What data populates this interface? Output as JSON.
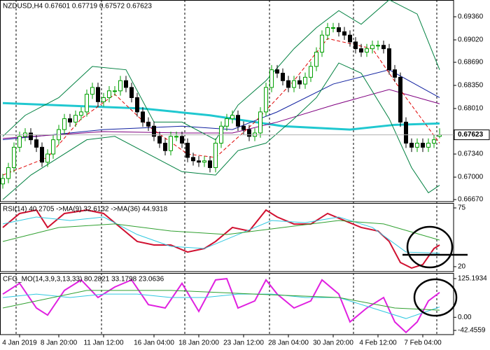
{
  "chart_data": [
    {
      "type": "candlestick",
      "title": "NZDUSD,H4  0.67601 0.67719 0.67572 0.67623",
      "up_color": "#00a000",
      "down_color": "#000000",
      "categories": [
        null,
        null,
        null,
        "4 Jan 2019",
        null,
        null,
        null,
        null,
        null,
        null,
        "8 Jan 20:00",
        null,
        null,
        null,
        null,
        null,
        null,
        null,
        "11 Jan 12:00",
        null,
        null,
        null,
        null,
        null,
        null,
        null,
        null,
        "16 Jan 04:00",
        null,
        null,
        null,
        null,
        null,
        null,
        null,
        "18 Jan 20:00",
        null,
        null,
        null,
        null,
        null,
        null,
        null,
        "23 Jan 12:00",
        null,
        null,
        null,
        null,
        null,
        null,
        null,
        "28 Jan 04:00",
        null,
        null,
        null,
        null,
        null,
        null,
        null,
        "30 Jan 20:00",
        null,
        null,
        null,
        null,
        null,
        null,
        null,
        "4 Feb 12:00",
        null,
        null,
        null,
        null,
        null,
        null,
        null,
        "7 Feb 04:00",
        null,
        null,
        null
      ],
      "open": [
        0.669,
        0.6698,
        0.6714,
        0.6744,
        0.676,
        0.6765,
        0.6755,
        0.6744,
        0.6722,
        0.6734,
        0.6755,
        0.677,
        0.6786,
        0.6781,
        0.6791,
        0.6796,
        0.6822,
        0.6832,
        0.6811,
        0.6817,
        0.6827,
        0.6827,
        0.6842,
        0.6832,
        0.6817,
        0.6796,
        0.6781,
        0.6775,
        0.676,
        0.675,
        0.6739,
        0.676,
        0.676,
        0.675,
        0.6729,
        0.6724,
        0.6722,
        0.6724,
        0.6714,
        0.675,
        0.6775,
        0.6786,
        0.6791,
        0.6775,
        0.677,
        0.676,
        0.6765,
        0.6796,
        0.6832,
        0.6858,
        0.6853,
        0.6842,
        0.6832,
        0.6842,
        0.6837,
        0.6847,
        0.6863,
        0.6884,
        0.6909,
        0.692,
        0.692,
        0.6914,
        0.6909,
        0.6899,
        0.6889,
        0.6884,
        0.6889,
        0.6894,
        0.6894,
        0.6889,
        0.6858,
        0.6847,
        0.6781,
        0.675,
        0.6744,
        0.675,
        0.6744,
        0.675,
        0.67601
      ],
      "high": [
        0.6705,
        0.6721,
        0.6751,
        0.6767,
        0.6772,
        0.6772,
        0.6762,
        0.6751,
        0.6741,
        0.6762,
        0.6777,
        0.6793,
        0.6793,
        0.6798,
        0.6803,
        0.6829,
        0.6839,
        0.6839,
        0.6824,
        0.6834,
        0.6834,
        0.6849,
        0.6849,
        0.6839,
        0.6824,
        0.6803,
        0.6788,
        0.6782,
        0.6767,
        0.6757,
        0.6767,
        0.6767,
        0.6767,
        0.6757,
        0.6736,
        0.6731,
        0.6731,
        0.6731,
        0.6757,
        0.6782,
        0.6793,
        0.6798,
        0.6798,
        0.6782,
        0.6777,
        0.6772,
        0.6803,
        0.6839,
        0.6865,
        0.6865,
        0.686,
        0.6849,
        0.6849,
        0.6849,
        0.6854,
        0.687,
        0.6891,
        0.6916,
        0.6927,
        0.6927,
        0.6927,
        0.6921,
        0.6916,
        0.6906,
        0.6896,
        0.6896,
        0.6901,
        0.6901,
        0.6901,
        0.6896,
        0.6865,
        0.6854,
        0.6788,
        0.6757,
        0.6757,
        0.6757,
        0.6757,
        0.6762,
        0.67719
      ],
      "low": [
        0.6683,
        0.6691,
        0.6707,
        0.6737,
        0.6753,
        0.6748,
        0.6737,
        0.6715,
        0.6715,
        0.6727,
        0.6748,
        0.6763,
        0.6774,
        0.6774,
        0.6784,
        0.6789,
        0.6815,
        0.6804,
        0.6804,
        0.681,
        0.682,
        0.682,
        0.6825,
        0.681,
        0.6789,
        0.6774,
        0.6768,
        0.6753,
        0.6743,
        0.6732,
        0.6732,
        0.6753,
        0.6743,
        0.6722,
        0.6717,
        0.6715,
        0.6715,
        0.6707,
        0.6707,
        0.6743,
        0.6768,
        0.6779,
        0.6768,
        0.6763,
        0.6753,
        0.6753,
        0.6758,
        0.6789,
        0.6825,
        0.6846,
        0.6835,
        0.6825,
        0.6825,
        0.683,
        0.683,
        0.684,
        0.6856,
        0.6877,
        0.6902,
        0.6913,
        0.6907,
        0.6902,
        0.6892,
        0.6882,
        0.6877,
        0.6877,
        0.6882,
        0.6887,
        0.6882,
        0.6851,
        0.684,
        0.6774,
        0.6743,
        0.6737,
        0.6737,
        0.6737,
        0.6737,
        0.6743,
        0.67572
      ],
      "close": [
        0.6698,
        0.6714,
        0.6744,
        0.676,
        0.6765,
        0.6755,
        0.6744,
        0.6722,
        0.6734,
        0.6755,
        0.677,
        0.6786,
        0.6781,
        0.6791,
        0.6796,
        0.6822,
        0.6832,
        0.6811,
        0.6817,
        0.6827,
        0.6827,
        0.6842,
        0.6832,
        0.6817,
        0.6796,
        0.6781,
        0.6775,
        0.676,
        0.675,
        0.6739,
        0.676,
        0.676,
        0.675,
        0.6729,
        0.6724,
        0.6722,
        0.6724,
        0.6714,
        0.675,
        0.6775,
        0.6786,
        0.6791,
        0.6775,
        0.677,
        0.676,
        0.6765,
        0.6796,
        0.6832,
        0.6858,
        0.6853,
        0.6842,
        0.6832,
        0.6842,
        0.6837,
        0.6847,
        0.6863,
        0.6884,
        0.6909,
        0.692,
        0.692,
        0.6914,
        0.6909,
        0.6899,
        0.6889,
        0.6884,
        0.6889,
        0.6894,
        0.6894,
        0.6889,
        0.6858,
        0.6847,
        0.6781,
        0.675,
        0.6744,
        0.675,
        0.6744,
        0.675,
        0.6755,
        0.67623
      ],
      "series": [
        {
          "color": "#20c8d0",
          "x": [
            0,
            25,
            37,
            50,
            62,
            70,
            78
          ],
          "values": [
            0.6809,
            0.6801,
            0.6791,
            0.6775,
            0.677,
            0.6777,
            0.6779
          ]
        },
        {
          "color": "#1020a0",
          "x": [
            0,
            18,
            32,
            41,
            49,
            59,
            69,
            78
          ],
          "values": [
            0.6755,
            0.677,
            0.6775,
            0.677,
            0.6796,
            0.6837,
            0.6858,
            0.6817
          ]
        },
        {
          "color": "#800080",
          "x": [
            0,
            18,
            32,
            41,
            49,
            59,
            69,
            78
          ],
          "values": [
            0.6757,
            0.6767,
            0.6765,
            0.6765,
            0.6781,
            0.6806,
            0.6829,
            0.6808
          ]
        },
        {
          "color": "#008040",
          "x": [
            0,
            4,
            10,
            16,
            22,
            27,
            32,
            38,
            42,
            47,
            52,
            56,
            60,
            64,
            69,
            74,
            78
          ],
          "values": [
            0.676,
            0.6791,
            0.6817,
            0.6863,
            0.6858,
            0.6781,
            0.6781,
            0.6755,
            0.6806,
            0.6842,
            0.6889,
            0.692,
            0.6945,
            0.6925,
            0.6961,
            0.694,
            0.6858
          ]
        },
        {
          "color": "#008040",
          "x": [
            0,
            5,
            10,
            15,
            20,
            26,
            32,
            38,
            42,
            47,
            52,
            56,
            60,
            64,
            69,
            73,
            76,
            78
          ],
          "values": [
            0.6667,
            0.6703,
            0.6729,
            0.6755,
            0.676,
            0.6734,
            0.6708,
            0.6703,
            0.6739,
            0.675,
            0.6786,
            0.6817,
            0.6868,
            0.6853,
            0.6786,
            0.6714,
            0.6677,
            0.6688
          ]
        },
        {
          "color": "#e00000",
          "dash": true,
          "x": [
            0,
            8,
            14,
            20,
            26,
            33,
            38,
            45,
            52,
            58,
            66,
            72,
            78
          ],
          "values": [
            0.6703,
            0.6729,
            0.6786,
            0.6822,
            0.6775,
            0.6734,
            0.6729,
            0.6781,
            0.6842,
            0.6904,
            0.6889,
            0.6817,
            0.675
          ]
        }
      ],
      "ylim": [
        0.6664,
        0.69607
      ],
      "yticks": [
        {
          "value": 0.6936,
          "label": "0.69360"
        },
        {
          "value": 0.6902,
          "label": "0.69020"
        },
        {
          "value": 0.6869,
          "label": "0.68690"
        },
        {
          "value": 0.6835,
          "label": "0.68350"
        },
        {
          "value": 0.6801,
          "label": "0.68010"
        },
        {
          "value": 0.6734,
          "label": "0.67340"
        },
        {
          "value": 0.67,
          "label": "0.67000"
        },
        {
          "value": 0.6667,
          "label": "0.66670"
        }
      ]
    },
    {
      "type": "line",
      "title": "RSI(14) 40.2705  ->MA(9) 32.6132  ->MA(36) 44.9318",
      "series": [
        {
          "color": "#d01030",
          "x": [
            0,
            3,
            6,
            8,
            11,
            15,
            18,
            21,
            24,
            27,
            30,
            33,
            36,
            38,
            41,
            44,
            47,
            49,
            52,
            55,
            58,
            61,
            64,
            67,
            69,
            71,
            73,
            75,
            77,
            78
          ],
          "values": [
            56.7,
            69.8,
            73,
            56.7,
            69.8,
            73,
            69.8,
            56.7,
            43.6,
            40.3,
            40.3,
            33.7,
            37,
            43.6,
            56.7,
            53.4,
            73,
            66.5,
            59.9,
            59.9,
            69.8,
            63.2,
            56.7,
            53.4,
            43.6,
            23.9,
            18.7,
            22,
            37,
            40.3
          ]
        },
        {
          "color": "#30c8e0",
          "x": [
            0,
            6,
            12,
            18,
            24,
            30,
            36,
            42,
            48,
            54,
            60,
            66,
            72,
            78
          ],
          "values": [
            60,
            66.5,
            63.2,
            66.5,
            50.1,
            39,
            37,
            50.1,
            63.2,
            61.2,
            66.5,
            56.7,
            33.7,
            32.6
          ]
        },
        {
          "color": "#30a030",
          "x": [
            0,
            10,
            20,
            30,
            40,
            50,
            60,
            68,
            78
          ],
          "values": [
            43.6,
            56.7,
            60,
            53.4,
            50.1,
            56.7,
            63.2,
            60,
            44.9
          ]
        }
      ],
      "ylim": [
        15.4,
        79.6
      ],
      "yticks": [
        75,
        20
      ]
    },
    {
      "type": "line",
      "title": "CFG_MO(14,3,9,3,13,33) 80.2821 33.1798 23.0636",
      "series": [
        {
          "color": "#e020e0",
          "x": [
            0,
            3,
            6,
            8,
            11,
            14,
            17,
            20,
            23,
            26,
            29,
            32,
            35,
            38,
            40,
            42,
            45,
            47,
            49,
            52,
            55,
            57,
            60,
            62,
            65,
            68,
            70,
            72,
            74,
            76,
            78
          ],
          "values": [
            75,
            110,
            30,
            7,
            87,
            121,
            64,
            98,
            121,
            41,
            30,
            110,
            19,
            121,
            125,
            30,
            53,
            121,
            75,
            30,
            53,
            121,
            75,
            -15,
            30,
            64,
            -15,
            -49,
            -15,
            53,
            80.3
          ]
        },
        {
          "color": "#30c8e0",
          "x": [
            0,
            6,
            12,
            18,
            24,
            30,
            36,
            42,
            48,
            54,
            60,
            66,
            72,
            78
          ],
          "values": [
            64,
            75,
            64,
            75,
            75,
            64,
            64,
            75,
            75,
            64,
            64,
            30,
            -4,
            33.2
          ]
        },
        {
          "color": "#30a030",
          "x": [
            0,
            15,
            30,
            45,
            60,
            70,
            78
          ],
          "values": [
            30,
            87,
            87,
            75,
            64,
            30,
            23.1
          ]
        }
      ],
      "ylim": [
        -56,
        143.3
      ],
      "yticks": [
        125.1934,
        {
          "value": 0,
          "label": "0.00"
        },
        -42.4559
      ]
    }
  ]
}
